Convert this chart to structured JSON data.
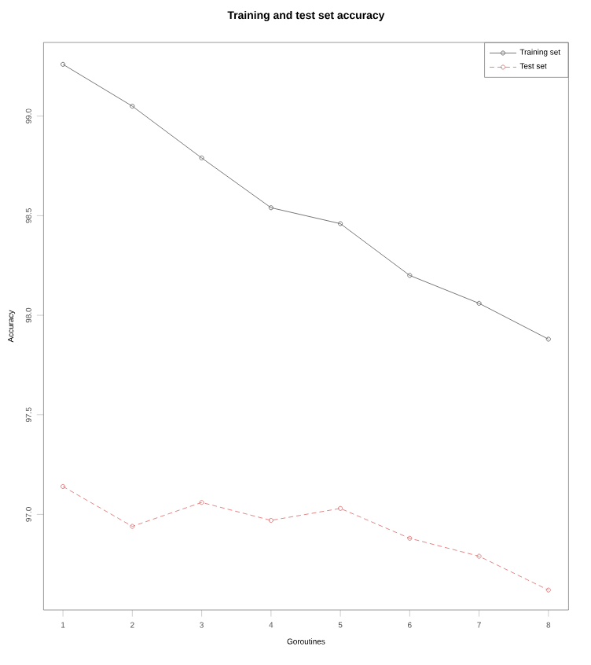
{
  "chart_data": {
    "type": "line",
    "title": "Training and test set accuracy",
    "xlabel": "Goroutines",
    "ylabel": "Accuracy",
    "x": [
      1,
      2,
      3,
      4,
      5,
      6,
      7,
      8
    ],
    "xlim": [
      0.72,
      8.29
    ],
    "ylim": [
      96.52,
      99.37
    ],
    "xticks": [
      1,
      2,
      3,
      4,
      5,
      6,
      7,
      8
    ],
    "yticks": [
      {
        "value": 97,
        "label": "97.0"
      },
      {
        "value": 97.5,
        "label": "97.5"
      },
      {
        "value": 98,
        "label": "98.0"
      },
      {
        "value": 98.5,
        "label": "98.5"
      },
      {
        "value": 99,
        "label": "99.0"
      }
    ],
    "marker": "circle",
    "legend": "top right",
    "series": [
      {
        "name": "Training set",
        "color": "#555555",
        "line_style": "solid",
        "values": [
          99.26,
          99.05,
          98.79,
          98.54,
          98.46,
          98.2,
          98.06,
          97.88
        ]
      },
      {
        "name": "Test set",
        "color": "#e06666",
        "line_style": "dashed",
        "values": [
          97.14,
          96.94,
          97.06,
          96.97,
          97.03,
          96.88,
          96.79,
          96.62
        ]
      }
    ]
  }
}
